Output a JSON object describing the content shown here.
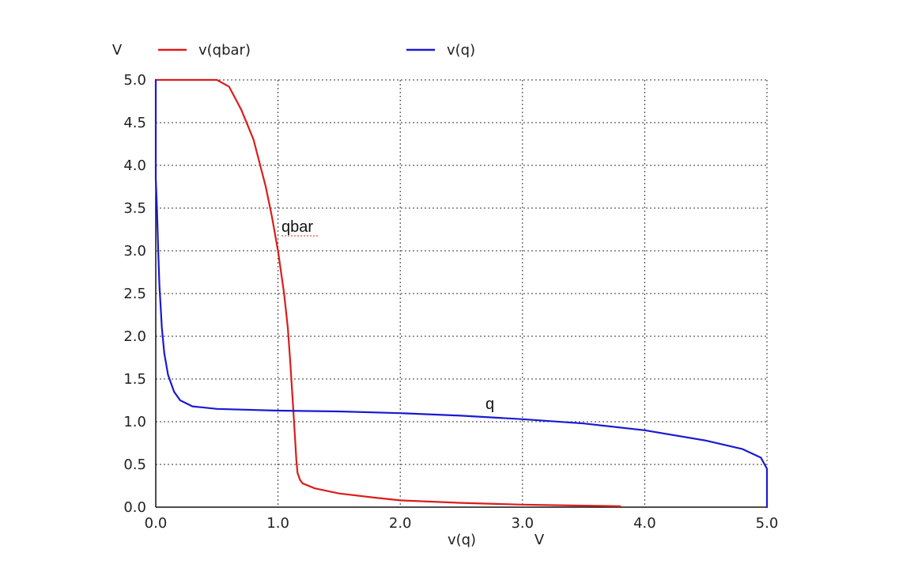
{
  "chart_data": {
    "type": "line",
    "xlabel": "v(q)",
    "xunit": "V",
    "yunit": "V",
    "xlim": [
      0,
      5
    ],
    "ylim": [
      0,
      5
    ],
    "xticks": [
      "0.0",
      "1.0",
      "2.0",
      "3.0",
      "4.0",
      "5.0"
    ],
    "yticks": [
      "0.0",
      "0.5",
      "1.0",
      "1.5",
      "2.0",
      "2.5",
      "3.0",
      "3.5",
      "4.0",
      "4.5",
      "5.0"
    ],
    "grid": true,
    "legend_position": "top",
    "colors": {
      "qbar": "#dd1c1c",
      "q": "#1a1ad2"
    },
    "series": [
      {
        "name": "v(qbar)",
        "color": "#dd1c1c",
        "annotation": "qbar",
        "x": [
          0.0,
          0.3,
          0.5,
          0.6,
          0.7,
          0.8,
          0.9,
          0.95,
          1.0,
          1.05,
          1.08,
          1.1,
          1.12,
          1.14,
          1.15,
          1.16,
          1.18,
          1.2,
          1.3,
          1.5,
          1.8,
          2.0,
          2.5,
          3.0,
          3.8
        ],
        "y": [
          5.0,
          5.0,
          5.0,
          4.92,
          4.65,
          4.3,
          3.75,
          3.4,
          3.0,
          2.5,
          2.1,
          1.7,
          1.25,
          0.8,
          0.55,
          0.4,
          0.32,
          0.28,
          0.22,
          0.16,
          0.11,
          0.08,
          0.05,
          0.03,
          0.01
        ]
      },
      {
        "name": "v(q)",
        "color": "#1a1ad2",
        "annotation": "q",
        "x": [
          0.0,
          0.0,
          0.01,
          0.02,
          0.03,
          0.05,
          0.07,
          0.1,
          0.15,
          0.2,
          0.3,
          0.5,
          1.0,
          1.5,
          2.0,
          2.5,
          3.0,
          3.5,
          4.0,
          4.5,
          4.8,
          4.95,
          5.0,
          5.0
        ],
        "y": [
          5.0,
          3.85,
          3.5,
          3.0,
          2.6,
          2.1,
          1.8,
          1.55,
          1.35,
          1.25,
          1.18,
          1.15,
          1.13,
          1.12,
          1.1,
          1.07,
          1.03,
          0.98,
          0.9,
          0.78,
          0.68,
          0.58,
          0.45,
          0.0
        ]
      }
    ]
  }
}
